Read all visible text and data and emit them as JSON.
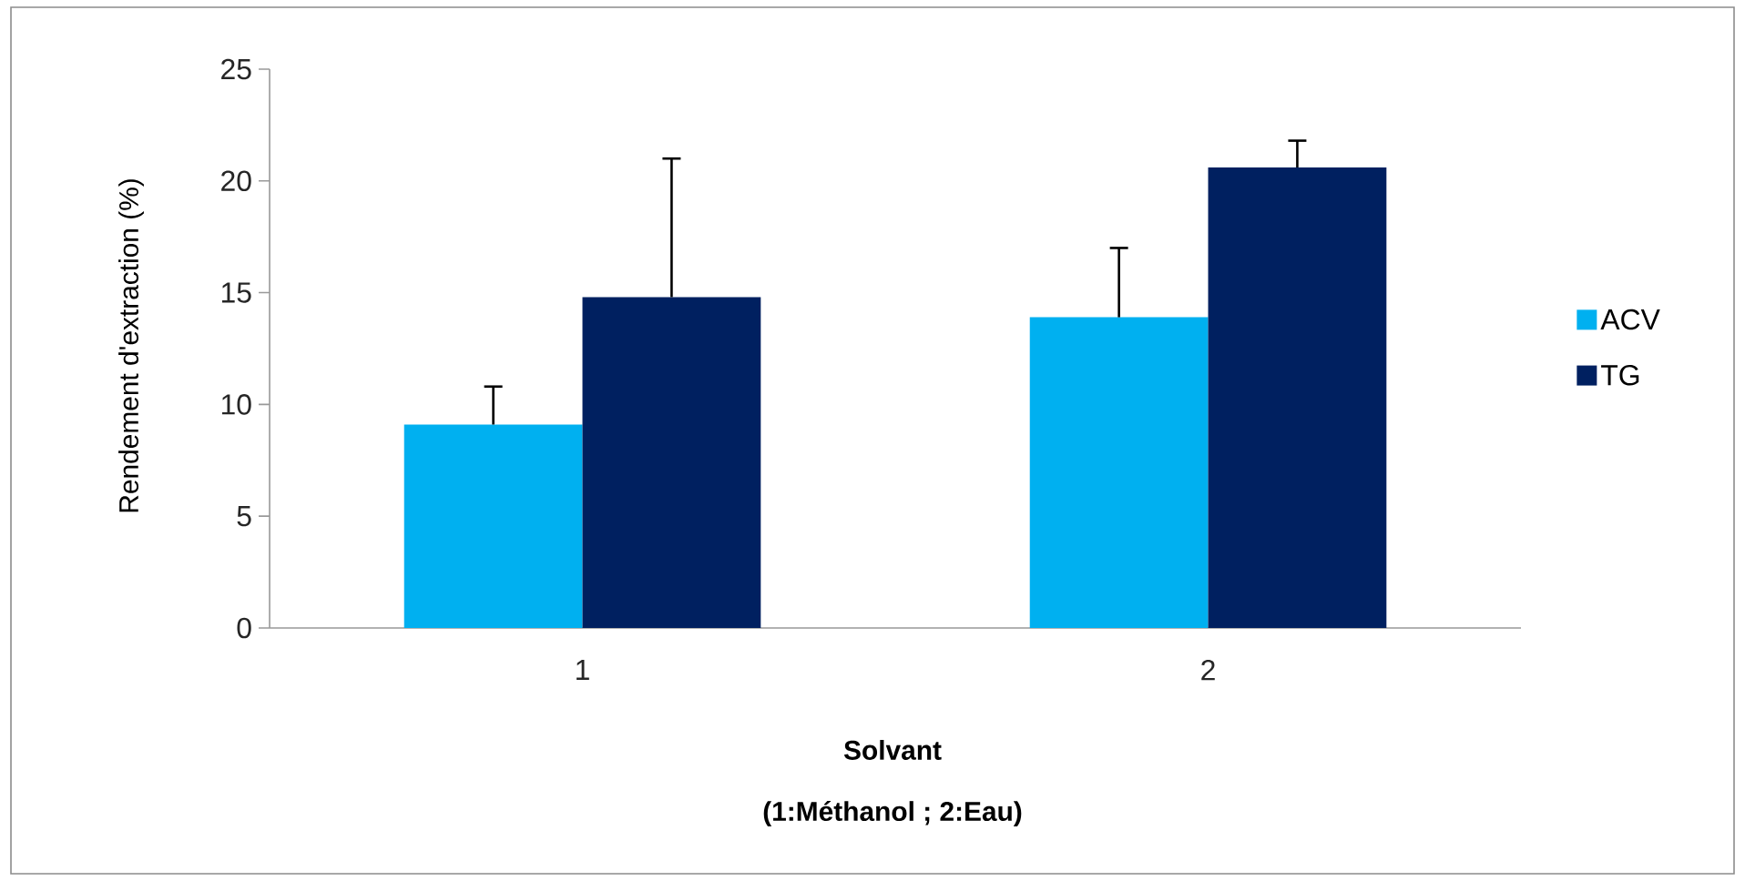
{
  "chart_data": {
    "type": "bar",
    "categories": [
      "1",
      "2"
    ],
    "xlabel": "Solvant",
    "ylabel": "Rendement d'extraction (%)",
    "annotations": [
      "(1:Méthanol ; 2:Eau)"
    ],
    "series": [
      {
        "name": "ACV",
        "color": "#00b0f0",
        "values": [
          9.1,
          13.9
        ],
        "errors": [
          [
            9.1,
            10.8
          ],
          [
            13.9,
            17.0
          ]
        ]
      },
      {
        "name": "TG",
        "color": "#002060",
        "values": [
          14.8,
          20.6
        ],
        "errors": [
          [
            14.8,
            21.0
          ],
          [
            20.6,
            21.8
          ]
        ]
      }
    ],
    "ylim": [
      0,
      25
    ],
    "yticks": [
      0,
      5,
      10,
      15,
      20,
      25
    ],
    "grid": false,
    "legend": "right"
  }
}
